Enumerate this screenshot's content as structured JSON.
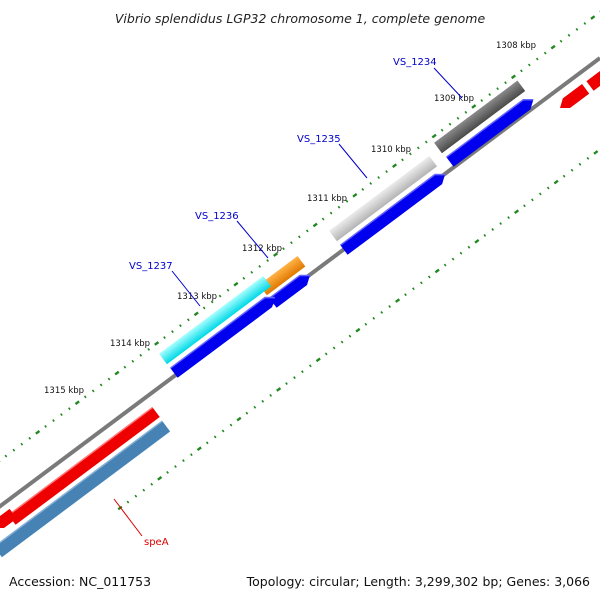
{
  "title": "Vibrio splendidus LGP32 chromosome 1, complete genome",
  "accession": "Accession: NC_011753",
  "summary": "Topology: circular; Length: 3,299,302 bp; Genes: 3,066",
  "scale_labels": [
    "1308 kbp",
    "1309 kbp",
    "1310 kbp",
    "1311 kbp",
    "1312 kbp",
    "1313 kbp",
    "1314 kbp",
    "1315 kbp"
  ],
  "gene_labels": [
    {
      "text": "VS_1234",
      "color": "#0000cc"
    },
    {
      "text": "VS_1235",
      "color": "#0000cc"
    },
    {
      "text": "VS_1236",
      "color": "#0000cc"
    },
    {
      "text": "VS_1237",
      "color": "#0000cc"
    },
    {
      "text": "speA",
      "color": "#dd0000"
    }
  ],
  "colors": {
    "backbone": "#777777",
    "tick": "#228822",
    "cds_forward": "#0000ee",
    "rna": "#ee0000",
    "gene_bar": "#4682b4",
    "feature_dark": "#555555",
    "feature_light": "#c4c4c4",
    "feature_orange": "#ff8c00",
    "feature_cyan": "#00e5ee"
  }
}
